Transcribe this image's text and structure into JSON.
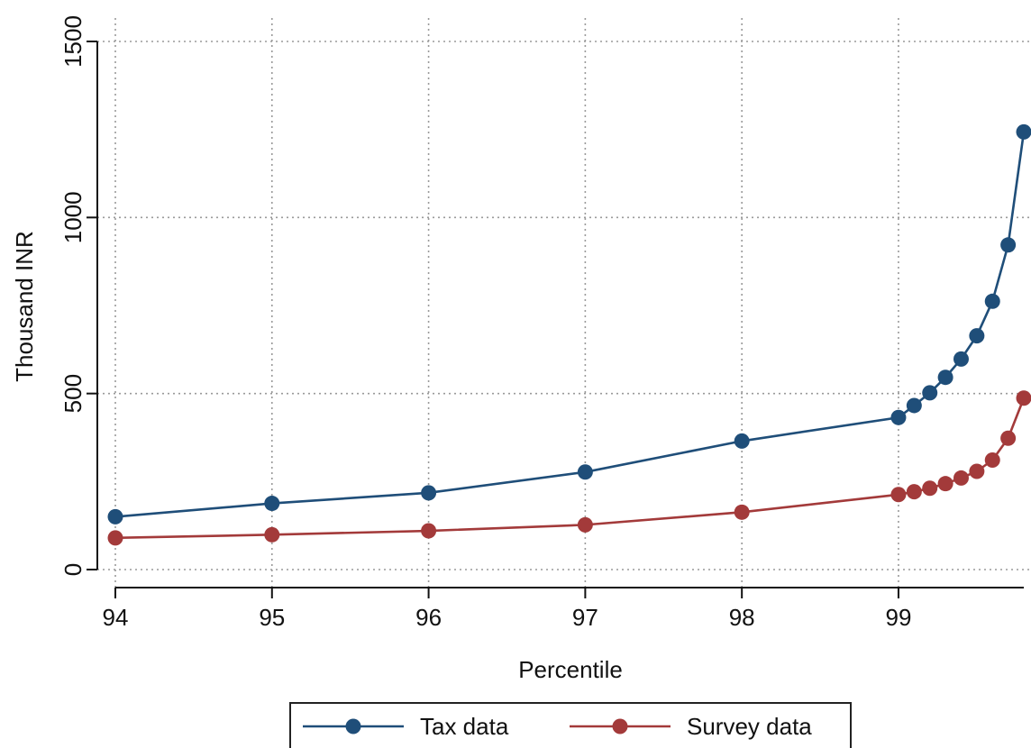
{
  "chart_data": {
    "type": "line",
    "xlabel": "Percentile",
    "ylabel": "Thousand INR",
    "xlim": [
      94,
      99.8
    ],
    "ylim": [
      0,
      1500
    ],
    "x_ticks": [
      94,
      95,
      96,
      97,
      98,
      99
    ],
    "x_tick_labels": [
      "94",
      "95",
      "96",
      "97",
      "98",
      "99"
    ],
    "y_ticks": [
      0,
      500,
      1000,
      1500
    ],
    "y_tick_labels": [
      "0",
      "500",
      "1000",
      "1500"
    ],
    "grid": true,
    "legend_position": "bottom",
    "series": [
      {
        "name": "Tax data",
        "color": "#1f4e79",
        "points": [
          [
            94,
            150
          ],
          [
            95,
            188
          ],
          [
            96,
            218
          ],
          [
            97,
            277
          ],
          [
            98,
            365
          ],
          [
            99,
            432
          ],
          [
            99.1,
            466
          ],
          [
            99.2,
            502
          ],
          [
            99.3,
            546
          ],
          [
            99.4,
            598
          ],
          [
            99.5,
            664
          ],
          [
            99.6,
            762
          ],
          [
            99.7,
            922
          ],
          [
            99.8,
            1243
          ]
        ]
      },
      {
        "name": "Survey data",
        "color": "#a33a3a",
        "points": [
          [
            94,
            90
          ],
          [
            95,
            99
          ],
          [
            96,
            110
          ],
          [
            97,
            127
          ],
          [
            98,
            163
          ],
          [
            99,
            213
          ],
          [
            99.1,
            221
          ],
          [
            99.2,
            231
          ],
          [
            99.3,
            244
          ],
          [
            99.4,
            260
          ],
          [
            99.5,
            279
          ],
          [
            99.6,
            311
          ],
          [
            99.7,
            373
          ],
          [
            99.8,
            487
          ]
        ]
      }
    ]
  }
}
